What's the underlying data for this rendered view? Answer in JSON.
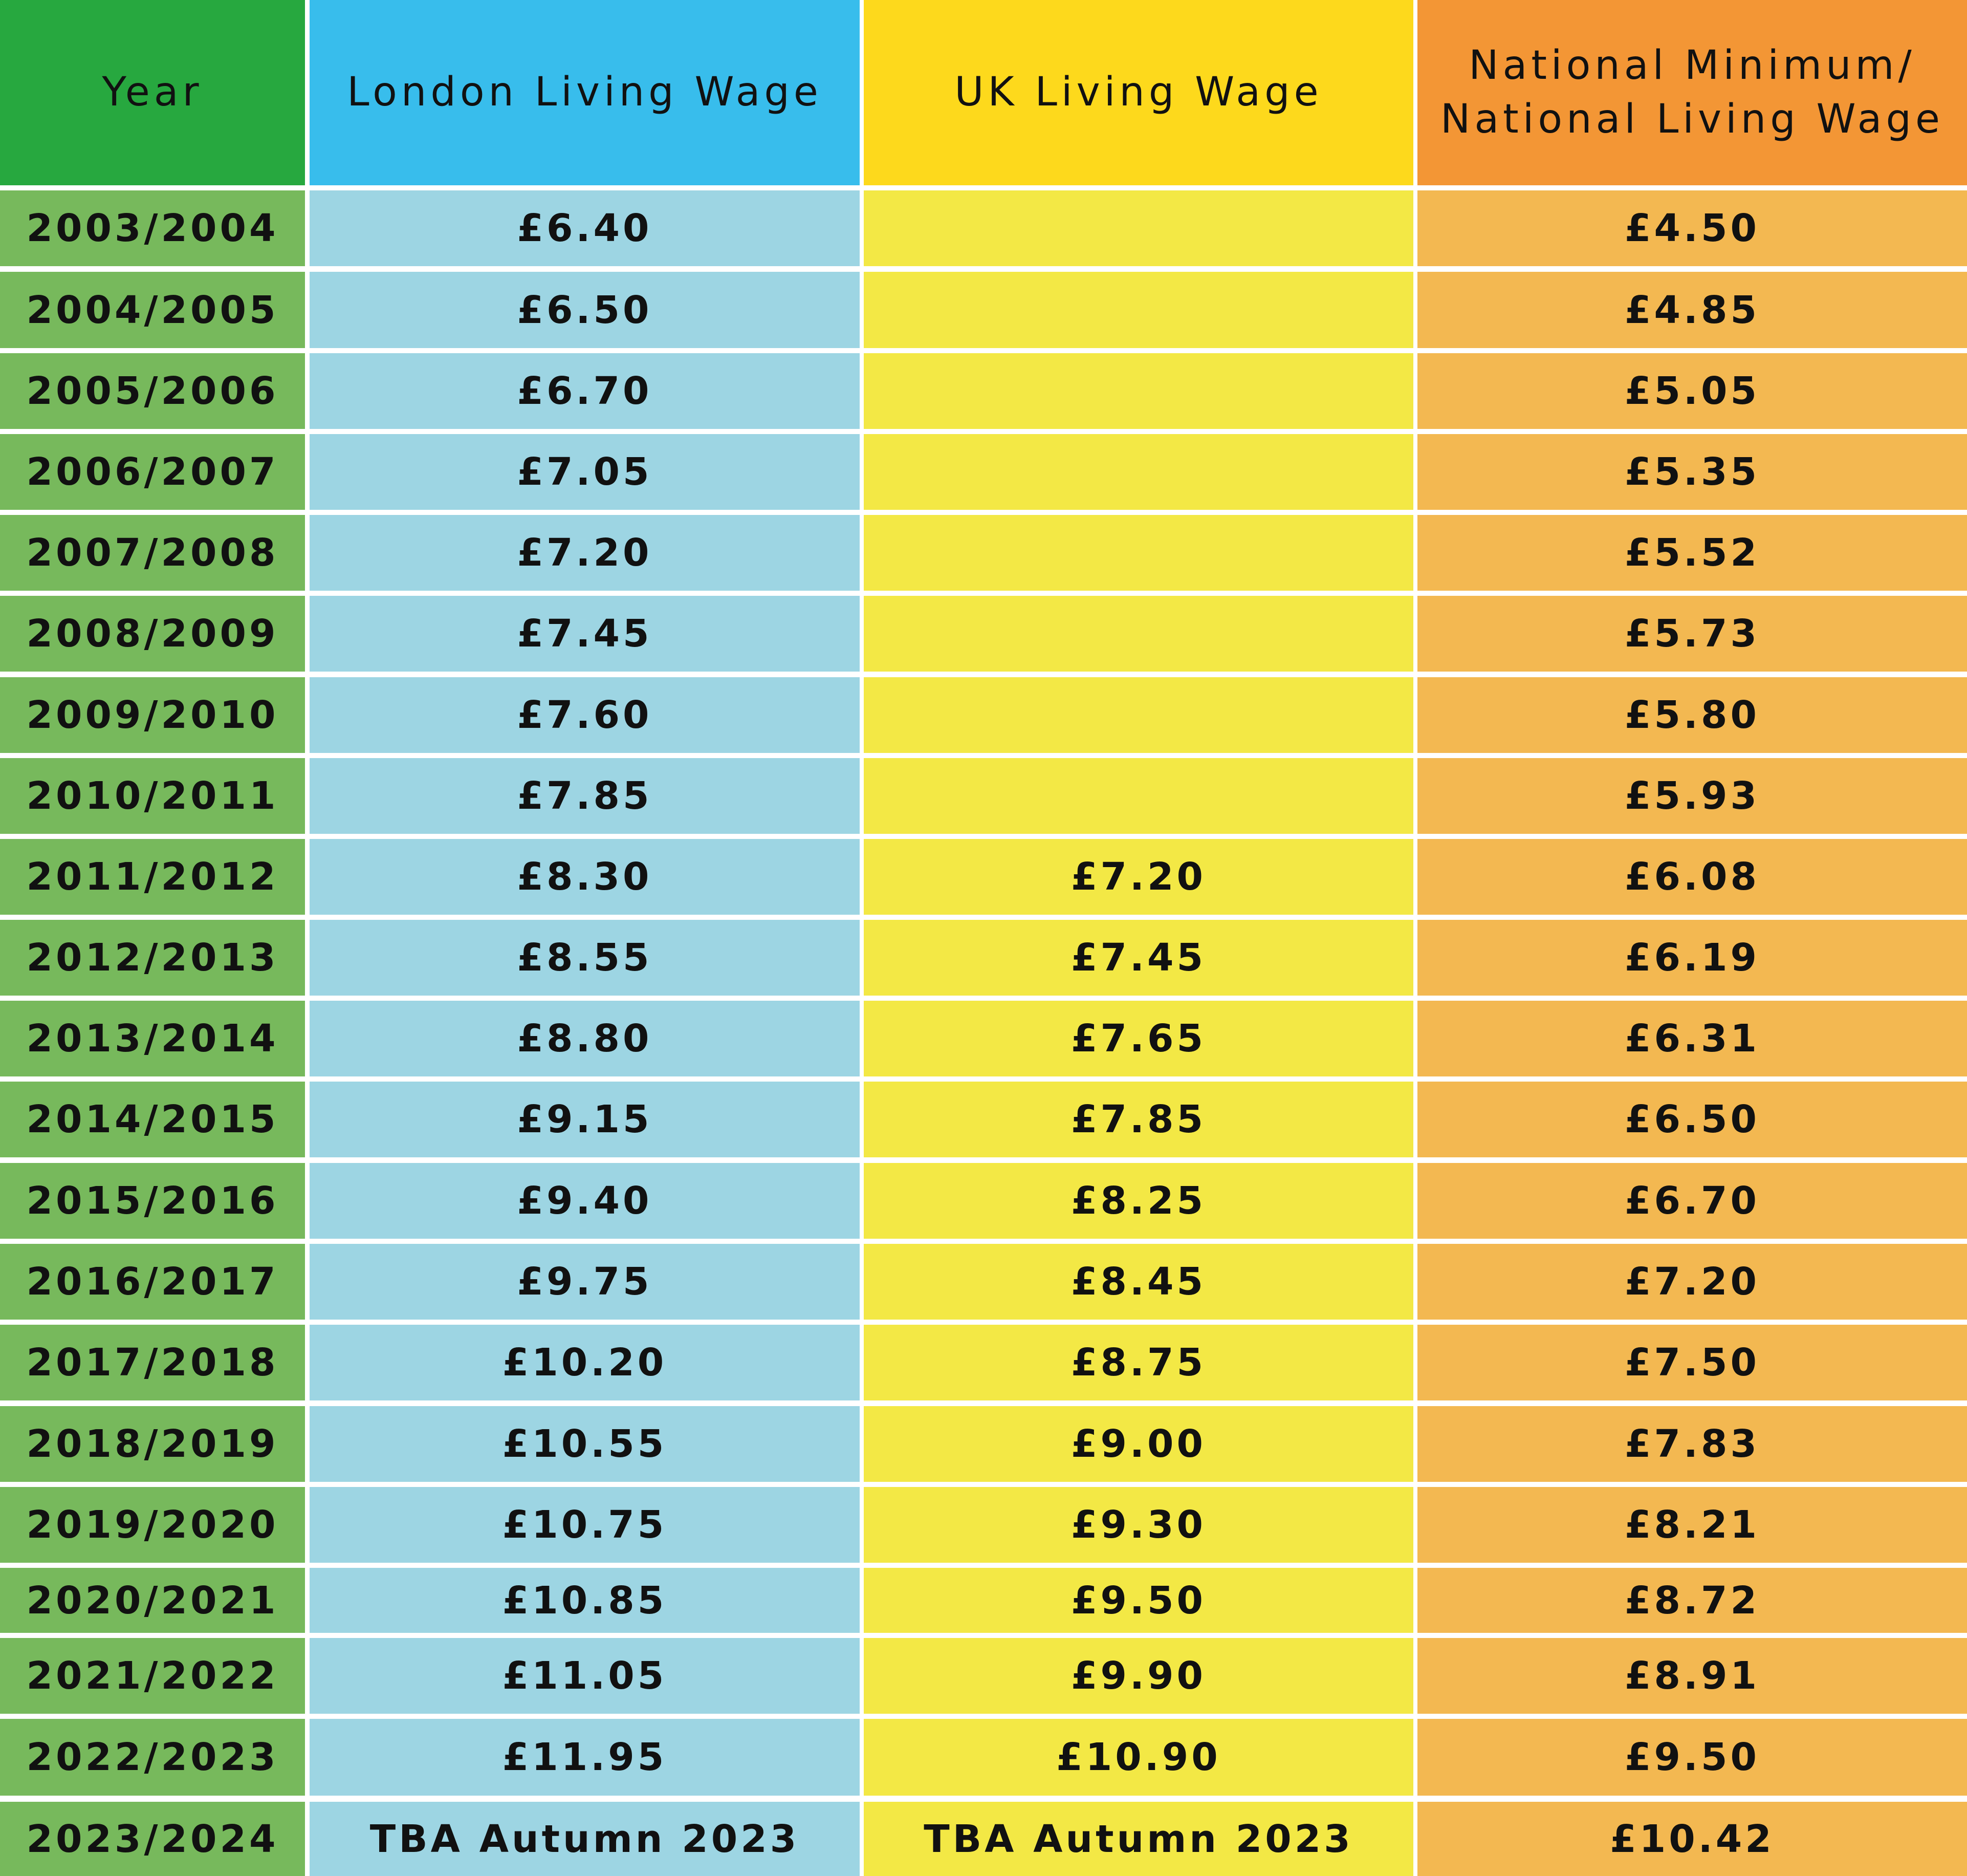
{
  "chart_data": {
    "type": "table",
    "columns": [
      {
        "key": "year",
        "label": "Year"
      },
      {
        "key": "london",
        "label": "London Living Wage"
      },
      {
        "key": "uk",
        "label": "UK Living Wage"
      },
      {
        "key": "national",
        "label": "National Minimum/\nNational Living Wage",
        "label_lines": [
          "National Minimum/",
          "National Living Wage"
        ]
      }
    ],
    "rows": [
      {
        "year": "2003/2004",
        "london": "£6.40",
        "uk": "",
        "national": "£4.50"
      },
      {
        "year": "2004/2005",
        "london": "£6.50",
        "uk": "",
        "national": "£4.85"
      },
      {
        "year": "2005/2006",
        "london": "£6.70",
        "uk": "",
        "national": "£5.05"
      },
      {
        "year": "2006/2007",
        "london": "£7.05",
        "uk": "",
        "national": "£5.35"
      },
      {
        "year": "2007/2008",
        "london": "£7.20",
        "uk": "",
        "national": "£5.52"
      },
      {
        "year": "2008/2009",
        "london": "£7.45",
        "uk": "",
        "national": "£5.73"
      },
      {
        "year": "2009/2010",
        "london": "£7.60",
        "uk": "",
        "national": "£5.80"
      },
      {
        "year": "2010/2011",
        "london": "£7.85",
        "uk": "",
        "national": "£5.93"
      },
      {
        "year": "2011/2012",
        "london": "£8.30",
        "uk": "£7.20",
        "national": "£6.08"
      },
      {
        "year": "2012/2013",
        "london": "£8.55",
        "uk": "£7.45",
        "national": "£6.19"
      },
      {
        "year": "2013/2014",
        "london": "£8.80",
        "uk": "£7.65",
        "national": "£6.31"
      },
      {
        "year": "2014/2015",
        "london": "£9.15",
        "uk": "£7.85",
        "national": "£6.50"
      },
      {
        "year": "2015/2016",
        "london": "£9.40",
        "uk": "£8.25",
        "national": "£6.70"
      },
      {
        "year": "2016/2017",
        "london": "£9.75",
        "uk": "£8.45",
        "national": "£7.20"
      },
      {
        "year": "2017/2018",
        "london": "£10.20",
        "uk": "£8.75",
        "national": "£7.50"
      },
      {
        "year": "2018/2019",
        "london": "£10.55",
        "uk": "£9.00",
        "national": "£7.83"
      },
      {
        "year": "2019/2020",
        "london": "£10.75",
        "uk": "£9.30",
        "national": "£8.21"
      },
      {
        "year": "2020/2021",
        "london": "£10.85",
        "uk": "£9.50",
        "national": "£8.72"
      },
      {
        "year": "2021/2022",
        "london": "£11.05",
        "uk": "£9.90",
        "national": "£8.91"
      },
      {
        "year": "2022/2023",
        "london": "£11.95",
        "uk": "£10.90",
        "national": "£9.50"
      },
      {
        "year": "2023/2024",
        "london": "TBA Autumn 2023",
        "uk": "TBA Autumn 2023",
        "national": "£10.42"
      }
    ],
    "colors": {
      "header": {
        "year": "#27a83f",
        "london": "#38bdec",
        "uk": "#fdd91c",
        "national": "#f39635"
      },
      "body": {
        "year": "#77b95c",
        "london": "#9dd5e3",
        "uk": "#f3e845",
        "national": "#f3b851"
      },
      "grid": "#ffffff"
    }
  }
}
